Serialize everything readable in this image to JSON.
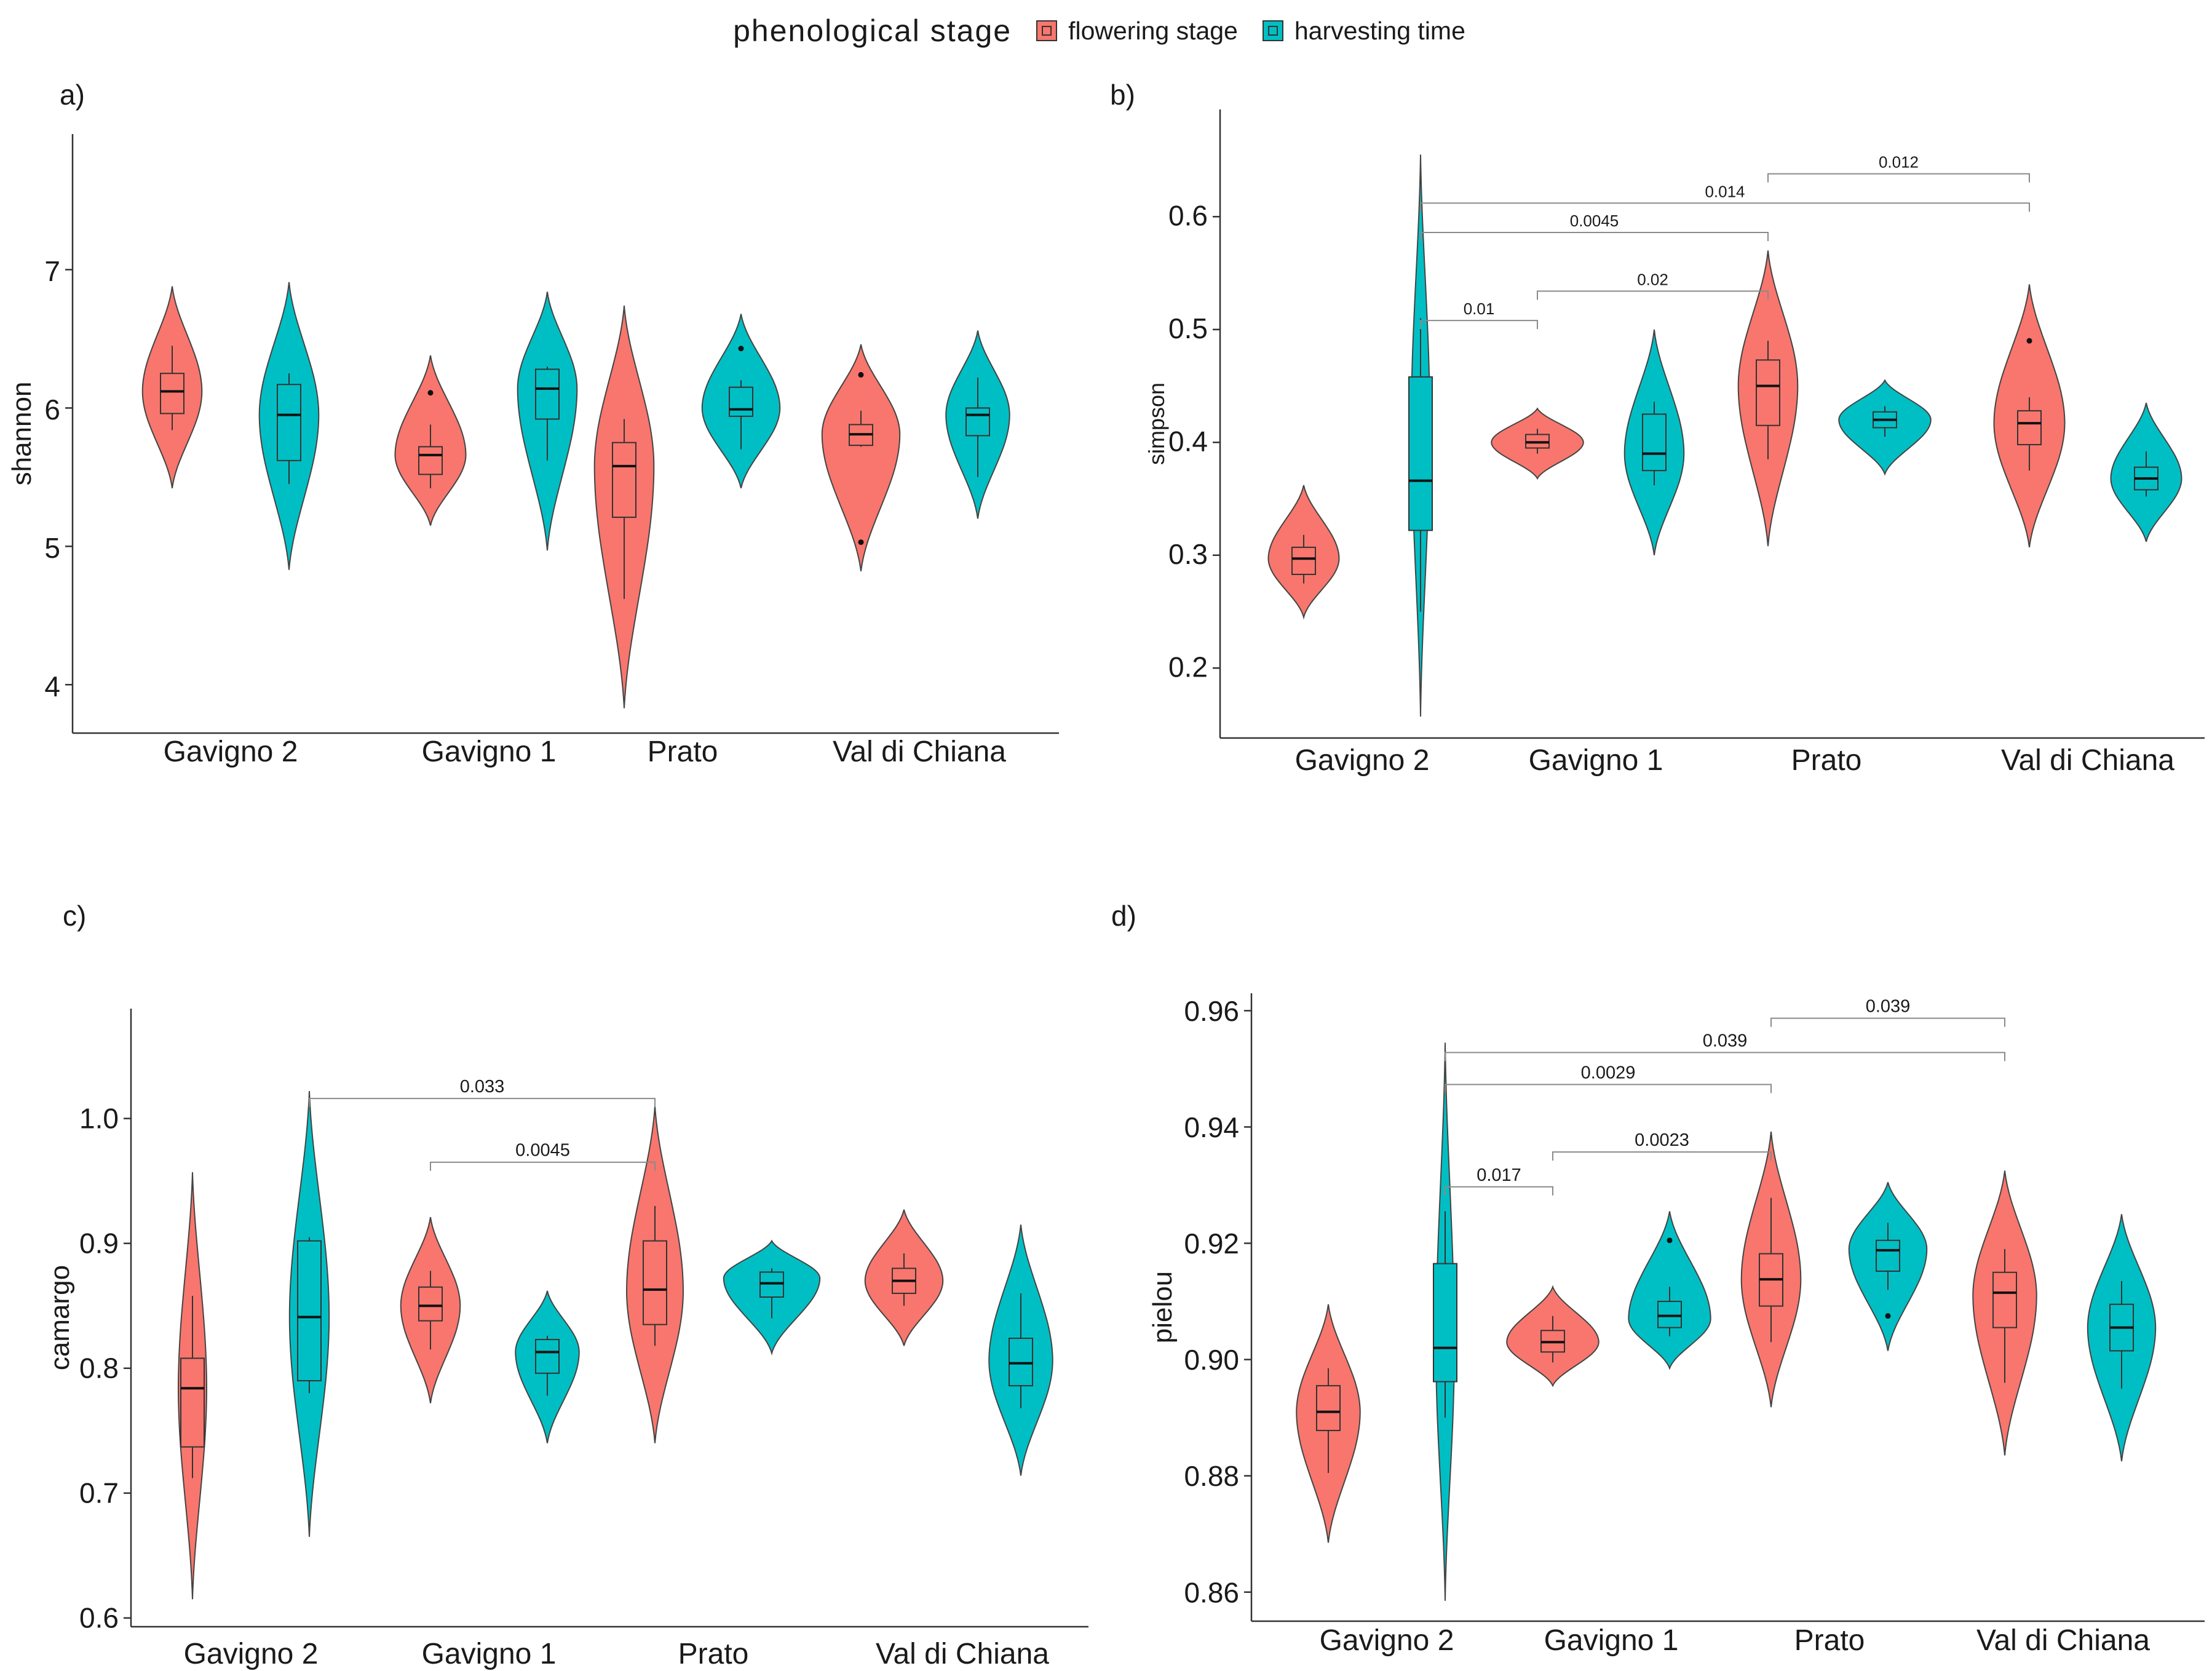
{
  "legend": {
    "title": "phenological  stage",
    "items": [
      {
        "label": "flowering stage",
        "color": "#F8766D"
      },
      {
        "label": "harvesting time",
        "color": "#00BFC4"
      }
    ]
  },
  "chart_data": [
    {
      "type": "violin",
      "panel": "a)",
      "ylabel": "shannon",
      "categories": [
        "Gavigno 2",
        "Gavigno 1",
        "Prato",
        "Val di Chiana"
      ],
      "ylim": [
        3.65,
        7.98
      ],
      "yticks": [
        4,
        5,
        6,
        7
      ],
      "series": [
        {
          "name": "flowering stage",
          "color": "#F8766D",
          "groups": [
            {
              "q1": 5.96,
              "median": 6.12,
              "q3": 6.25,
              "wlo": 5.84,
              "whi": 6.45,
              "outliers": [],
              "vmin": 5.42,
              "vmax": 6.88,
              "vpeak": 6.12,
              "width": 0.42
            },
            {
              "q1": 5.52,
              "median": 5.66,
              "q3": 5.72,
              "wlo": 5.42,
              "whi": 5.88,
              "outliers": [
                6.11
              ],
              "vmin": 5.15,
              "vmax": 6.38,
              "vpeak": 5.66,
              "width": 0.5
            },
            {
              "q1": 5.21,
              "median": 5.58,
              "q3": 5.75,
              "wlo": 4.62,
              "whi": 5.92,
              "outliers": [],
              "vmin": 3.83,
              "vmax": 6.74,
              "vpeak": 5.58,
              "width": 0.42
            },
            {
              "q1": 5.73,
              "median": 5.81,
              "q3": 5.88,
              "wlo": 5.72,
              "whi": 5.98,
              "outliers": [
                6.24,
                5.03
              ],
              "vmin": 4.82,
              "vmax": 6.46,
              "vpeak": 5.81,
              "width": 0.55
            }
          ]
        },
        {
          "name": "harvesting time",
          "color": "#00BFC4",
          "groups": [
            {
              "q1": 5.62,
              "median": 5.95,
              "q3": 6.17,
              "wlo": 5.45,
              "whi": 6.25,
              "outliers": [],
              "vmin": 4.83,
              "vmax": 6.91,
              "vpeak": 5.95,
              "width": 0.42
            },
            {
              "q1": 5.92,
              "median": 6.14,
              "q3": 6.28,
              "wlo": 5.62,
              "whi": 6.3,
              "outliers": [],
              "vmin": 4.97,
              "vmax": 6.84,
              "vpeak": 6.14,
              "width": 0.42
            },
            {
              "q1": 5.94,
              "median": 5.99,
              "q3": 6.15,
              "wlo": 5.7,
              "whi": 6.2,
              "outliers": [
                6.43
              ],
              "vmin": 5.42,
              "vmax": 6.68,
              "vpeak": 6.0,
              "width": 0.55
            },
            {
              "q1": 5.8,
              "median": 5.95,
              "q3": 6.0,
              "wlo": 5.5,
              "whi": 6.22,
              "outliers": [],
              "vmin": 5.2,
              "vmax": 6.56,
              "vpeak": 5.95,
              "width": 0.45
            }
          ]
        }
      ],
      "comparisons": []
    },
    {
      "type": "violin",
      "panel": "b)",
      "ylabel": "simpson",
      "categories": [
        "Gavigno 2",
        "Gavigno 1",
        "Prato",
        "Val di Chiana"
      ],
      "ylim": [
        0.138,
        0.695
      ],
      "yticks": [
        0.2,
        0.3,
        0.4,
        0.5,
        0.6
      ],
      "yticklabels": [
        "0.2",
        "0.3",
        "0.4",
        "0.5",
        "0.6"
      ],
      "series": [
        {
          "name": "flowering stage",
          "color": "#F8766D",
          "groups": [
            {
              "q1": 0.283,
              "median": 0.297,
              "q3": 0.307,
              "wlo": 0.275,
              "whi": 0.318,
              "outliers": [],
              "vmin": 0.245,
              "vmax": 0.362,
              "vpeak": 0.297,
              "width": 0.5
            },
            {
              "q1": 0.395,
              "median": 0.4,
              "q3": 0.407,
              "wlo": 0.39,
              "whi": 0.412,
              "outliers": [],
              "vmin": 0.368,
              "vmax": 0.43,
              "vpeak": 0.4,
              "width": 0.65
            },
            {
              "q1": 0.415,
              "median": 0.45,
              "q3": 0.473,
              "wlo": 0.385,
              "whi": 0.49,
              "outliers": [],
              "vmin": 0.308,
              "vmax": 0.57,
              "vpeak": 0.45,
              "width": 0.42
            },
            {
              "q1": 0.398,
              "median": 0.417,
              "q3": 0.428,
              "wlo": 0.375,
              "whi": 0.44,
              "outliers": [
                0.49
              ],
              "vmin": 0.307,
              "vmax": 0.54,
              "vpeak": 0.417,
              "width": 0.5
            }
          ]
        },
        {
          "name": "harvesting time",
          "color": "#00BFC4",
          "groups": [
            {
              "q1": 0.322,
              "median": 0.366,
              "q3": 0.458,
              "wlo": 0.25,
              "whi": 0.51,
              "outliers": [],
              "vmin": 0.157,
              "vmax": 0.655,
              "vpeak": 0.42,
              "width": 0.13
            },
            {
              "q1": 0.375,
              "median": 0.39,
              "q3": 0.425,
              "wlo": 0.362,
              "whi": 0.436,
              "outliers": [],
              "vmin": 0.3,
              "vmax": 0.5,
              "vpeak": 0.39,
              "width": 0.42
            },
            {
              "q1": 0.413,
              "median": 0.42,
              "q3": 0.427,
              "wlo": 0.405,
              "whi": 0.432,
              "outliers": [],
              "vmin": 0.372,
              "vmax": 0.455,
              "vpeak": 0.42,
              "width": 0.65
            },
            {
              "q1": 0.358,
              "median": 0.368,
              "q3": 0.378,
              "wlo": 0.352,
              "whi": 0.392,
              "outliers": [],
              "vmin": 0.312,
              "vmax": 0.435,
              "vpeak": 0.368,
              "width": 0.5
            }
          ]
        }
      ],
      "comparisons": [
        {
          "from": [
            0,
            1
          ],
          "to": [
            1,
            0
          ],
          "label": "0.01",
          "y": 0.508
        },
        {
          "from": [
            1,
            0
          ],
          "to": [
            2,
            0
          ],
          "label": "0.02",
          "y": 0.534
        },
        {
          "from": [
            0,
            1
          ],
          "to": [
            2,
            0
          ],
          "label": "0.0045",
          "y": 0.586
        },
        {
          "from": [
            0,
            1
          ],
          "to": [
            3,
            0
          ],
          "label": "0.014",
          "y": 0.612
        },
        {
          "from": [
            2,
            0
          ],
          "to": [
            3,
            0
          ],
          "label": "0.012",
          "y": 0.638
        }
      ]
    },
    {
      "type": "violin",
      "panel": "c)",
      "ylabel": "camargo",
      "categories": [
        "Gavigno 2",
        "Gavigno 1",
        "Prato",
        "Val di Chiana"
      ],
      "ylim": [
        0.593,
        1.088
      ],
      "yticks": [
        0.6,
        0.7,
        0.8,
        0.9,
        1.0
      ],
      "yticklabels": [
        "0.6",
        "0.7",
        "0.8",
        "0.9",
        "1.0"
      ],
      "series": [
        {
          "name": "flowering stage",
          "color": "#F8766D",
          "groups": [
            {
              "q1": 0.737,
              "median": 0.784,
              "q3": 0.808,
              "wlo": 0.712,
              "whi": 0.858,
              "outliers": [],
              "vmin": 0.615,
              "vmax": 0.957,
              "vpeak": 0.784,
              "width": 0.2
            },
            {
              "q1": 0.838,
              "median": 0.85,
              "q3": 0.865,
              "wlo": 0.815,
              "whi": 0.878,
              "outliers": [],
              "vmin": 0.772,
              "vmax": 0.921,
              "vpeak": 0.85,
              "width": 0.42
            },
            {
              "q1": 0.835,
              "median": 0.863,
              "q3": 0.902,
              "wlo": 0.818,
              "whi": 0.93,
              "outliers": [],
              "vmin": 0.74,
              "vmax": 1.01,
              "vpeak": 0.862,
              "width": 0.4
            },
            {
              "q1": 0.86,
              "median": 0.87,
              "q3": 0.88,
              "wlo": 0.85,
              "whi": 0.892,
              "outliers": [],
              "vmin": 0.818,
              "vmax": 0.927,
              "vpeak": 0.87,
              "width": 0.55
            }
          ]
        },
        {
          "name": "harvesting time",
          "color": "#00BFC4",
          "groups": [
            {
              "q1": 0.79,
              "median": 0.841,
              "q3": 0.902,
              "wlo": 0.78,
              "whi": 0.905,
              "outliers": [],
              "vmin": 0.665,
              "vmax": 1.022,
              "vpeak": 0.841,
              "width": 0.28
            },
            {
              "q1": 0.796,
              "median": 0.813,
              "q3": 0.823,
              "wlo": 0.778,
              "whi": 0.826,
              "outliers": [],
              "vmin": 0.74,
              "vmax": 0.862,
              "vpeak": 0.813,
              "width": 0.45
            },
            {
              "q1": 0.857,
              "median": 0.868,
              "q3": 0.877,
              "wlo": 0.84,
              "whi": 0.88,
              "outliers": [],
              "vmin": 0.812,
              "vmax": 0.902,
              "vpeak": 0.872,
              "width": 0.68
            },
            {
              "q1": 0.786,
              "median": 0.804,
              "q3": 0.824,
              "wlo": 0.768,
              "whi": 0.86,
              "outliers": [],
              "vmin": 0.714,
              "vmax": 0.915,
              "vpeak": 0.806,
              "width": 0.45
            }
          ]
        }
      ],
      "comparisons": [
        {
          "from": [
            1,
            0
          ],
          "to": [
            2,
            0
          ],
          "label": "0.0045",
          "y": 0.965
        },
        {
          "from": [
            0,
            1
          ],
          "to": [
            2,
            0
          ],
          "label": "0.033",
          "y": 1.016
        }
      ]
    },
    {
      "type": "violin",
      "panel": "d)",
      "ylabel": "pielou",
      "categories": [
        "Gavigno 2",
        "Gavigno 1",
        "Prato",
        "Val di Chiana"
      ],
      "ylim": [
        0.855,
        0.963
      ],
      "yticks": [
        0.86,
        0.88,
        0.9,
        0.92,
        0.94,
        0.96
      ],
      "yticklabels": [
        "0.86",
        "0.88",
        "0.90",
        "0.92",
        "0.94",
        "0.96"
      ],
      "series": [
        {
          "name": "flowering stage",
          "color": "#F8766D",
          "groups": [
            {
              "q1": 0.8878,
              "median": 0.891,
              "q3": 0.8955,
              "wlo": 0.8805,
              "whi": 0.8985,
              "outliers": [],
              "vmin": 0.8685,
              "vmax": 0.9095,
              "vpeak": 0.891,
              "width": 0.45
            },
            {
              "q1": 0.9013,
              "median": 0.903,
              "q3": 0.905,
              "wlo": 0.8995,
              "whi": 0.9075,
              "outliers": [],
              "vmin": 0.8955,
              "vmax": 0.9125,
              "vpeak": 0.903,
              "width": 0.65
            },
            {
              "q1": 0.9092,
              "median": 0.9138,
              "q3": 0.9182,
              "wlo": 0.903,
              "whi": 0.9278,
              "outliers": [],
              "vmin": 0.8918,
              "vmax": 0.9392,
              "vpeak": 0.9138,
              "width": 0.42
            },
            {
              "q1": 0.9055,
              "median": 0.9115,
              "q3": 0.915,
              "wlo": 0.896,
              "whi": 0.919,
              "outliers": [],
              "vmin": 0.8835,
              "vmax": 0.9325,
              "vpeak": 0.911,
              "width": 0.45
            }
          ]
        },
        {
          "name": "harvesting time",
          "color": "#00BFC4",
          "groups": [
            {
              "q1": 0.8962,
              "median": 0.902,
              "q3": 0.9165,
              "wlo": 0.89,
              "whi": 0.9255,
              "outliers": [],
              "vmin": 0.8585,
              "vmax": 0.9545,
              "vpeak": 0.902,
              "width": 0.13
            },
            {
              "q1": 0.9055,
              "median": 0.9075,
              "q3": 0.91,
              "wlo": 0.904,
              "whi": 0.9125,
              "outliers": [
                0.9205
              ],
              "vmin": 0.8985,
              "vmax": 0.9255,
              "vpeak": 0.907,
              "width": 0.58
            },
            {
              "q1": 0.9152,
              "median": 0.9188,
              "q3": 0.9205,
              "wlo": 0.912,
              "whi": 0.9235,
              "outliers": [
                0.9075
              ],
              "vmin": 0.9015,
              "vmax": 0.9305,
              "vpeak": 0.919,
              "width": 0.55
            },
            {
              "q1": 0.9015,
              "median": 0.9055,
              "q3": 0.9095,
              "wlo": 0.895,
              "whi": 0.9135,
              "outliers": [],
              "vmin": 0.8825,
              "vmax": 0.925,
              "vpeak": 0.9055,
              "width": 0.48
            }
          ]
        }
      ],
      "comparisons": [
        {
          "from": [
            0,
            1
          ],
          "to": [
            1,
            0
          ],
          "label": "0.017",
          "y": 0.9297
        },
        {
          "from": [
            1,
            0
          ],
          "to": [
            2,
            0
          ],
          "label": "0.0023",
          "y": 0.9357
        },
        {
          "from": [
            0,
            1
          ],
          "to": [
            2,
            0
          ],
          "label": "0.0029",
          "y": 0.9473
        },
        {
          "from": [
            0,
            1
          ],
          "to": [
            3,
            0
          ],
          "label": "0.039",
          "y": 0.9528
        },
        {
          "from": [
            2,
            0
          ],
          "to": [
            3,
            0
          ],
          "label": "0.039",
          "y": 0.9587
        }
      ]
    }
  ]
}
